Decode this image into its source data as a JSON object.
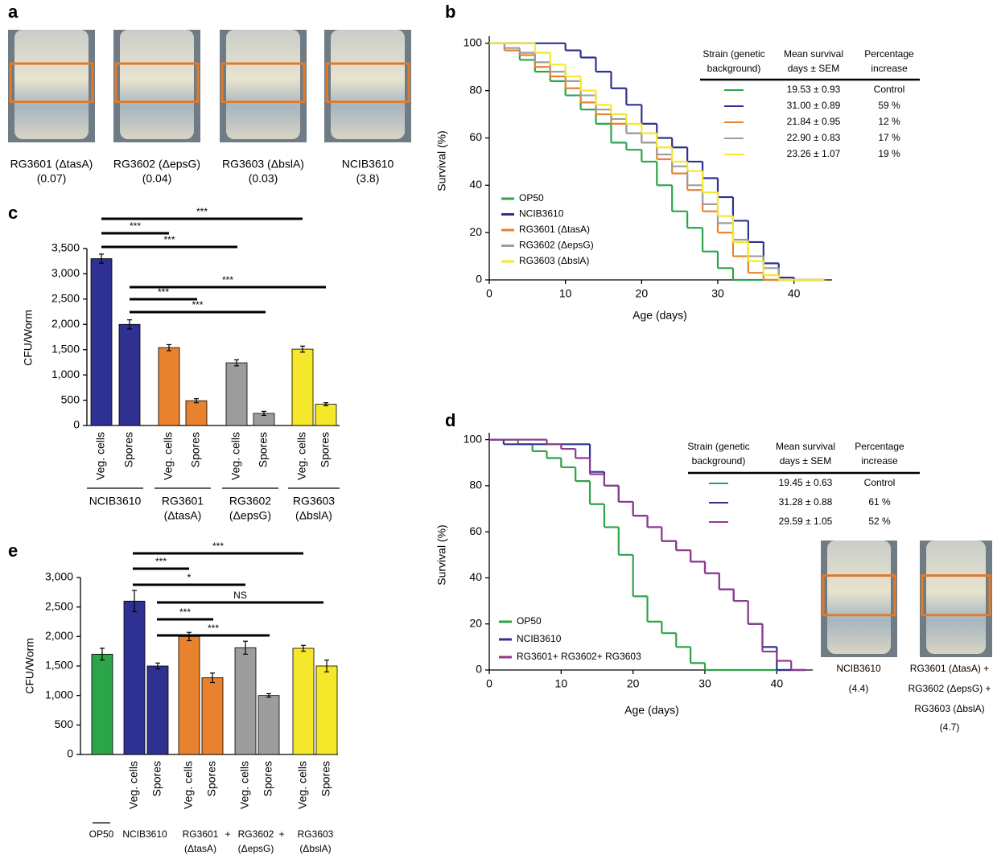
{
  "panel_a": {
    "label": "a",
    "photos": [
      {
        "name": "RG3601 (ΔtasA)",
        "value": "(0.07)"
      },
      {
        "name": "RG3602 (ΔepsG)",
        "value": "(0.04)"
      },
      {
        "name": "RG3603 (ΔbslA)",
        "value": "(0.03)"
      },
      {
        "name": "NCIB3610",
        "value": "(3.8)"
      }
    ]
  },
  "chart_data": [
    {
      "type": "step",
      "label": "b",
      "xlabel": "Age (days)",
      "ylabel": "Survival (%)",
      "x": [
        0,
        2,
        4,
        6,
        8,
        10,
        12,
        14,
        16,
        18,
        20,
        22,
        24,
        26,
        28,
        30,
        32,
        34,
        36,
        38,
        40,
        42,
        44
      ],
      "xlim": [
        0,
        45
      ],
      "xticks": [
        0,
        10,
        20,
        30,
        40
      ],
      "ylim": [
        0,
        103
      ],
      "yticks": [
        0,
        20,
        40,
        60,
        80,
        100
      ],
      "series": [
        {
          "name": "OP50",
          "color": "#2ca44a",
          "values": [
            100,
            97,
            93,
            88,
            84,
            78,
            72,
            66,
            58,
            55,
            50,
            40,
            29,
            22,
            12,
            5,
            0,
            0,
            0,
            0,
            0,
            0,
            0
          ]
        },
        {
          "name": "NCIB3610",
          "color": "#2e3192",
          "values": [
            100,
            100,
            100,
            100,
            100,
            97,
            94,
            88,
            81,
            74,
            66,
            60,
            56,
            50,
            43,
            35,
            25,
            16,
            7,
            1,
            0,
            0,
            0
          ]
        },
        {
          "name": "RG3601 (ΔtasA)",
          "color": "#e9822e",
          "values": [
            100,
            97,
            95,
            90,
            86,
            81,
            75,
            70,
            66,
            62,
            58,
            51,
            45,
            38,
            29,
            20,
            10,
            3,
            0,
            0,
            0,
            0,
            0
          ]
        },
        {
          "name": "RG3602 (ΔepsG)",
          "color": "#9d9d9d",
          "values": [
            100,
            98,
            96,
            92,
            88,
            84,
            78,
            72,
            68,
            62,
            58,
            53,
            48,
            40,
            32,
            24,
            17,
            10,
            5,
            0,
            0,
            0,
            0
          ]
        },
        {
          "name": "RG3603 (ΔbslA)",
          "color": "#f5e82a",
          "values": [
            100,
            100,
            100,
            96,
            91,
            86,
            80,
            74,
            70,
            66,
            62,
            56,
            50,
            46,
            37,
            27,
            16,
            8,
            2,
            0,
            0,
            0,
            0
          ]
        }
      ],
      "table": {
        "header": [
          [
            "Strain (genetic",
            "background)"
          ],
          [
            "Mean survival",
            "days ± SEM"
          ],
          [
            "Percentage",
            "increase"
          ]
        ],
        "rows": [
          [
            "19.53 ± 0.93",
            "Control"
          ],
          [
            "31.00 ± 0.89",
            "59 %"
          ],
          [
            "21.84 ± 0.95",
            "12 %"
          ],
          [
            "22.90 ± 0.83",
            "17 %"
          ],
          [
            "23.26 ± 1.07",
            "19 %"
          ]
        ]
      }
    },
    {
      "type": "bar",
      "label": "c",
      "ylabel": "CFU/Worm",
      "categories": [
        "Veg. cells",
        "Spores",
        "Veg. cells",
        "Spores",
        "Veg. cells",
        "Spores",
        "Veg. cells",
        "Spores"
      ],
      "values": [
        3300,
        2000,
        1540,
        490,
        1240,
        240,
        1510,
        420
      ],
      "errors": [
        90,
        90,
        60,
        40,
        60,
        40,
        60,
        30
      ],
      "colors": [
        "#2e3192",
        "#2e3192",
        "#e9822e",
        "#e9822e",
        "#9d9d9d",
        "#9d9d9d",
        "#f5e82a",
        "#f5e82a"
      ],
      "ylim": [
        0,
        3500
      ],
      "yticks": [
        0,
        500,
        {
          "value": 1000,
          "label": "1,000"
        },
        {
          "value": 1500,
          "label": "1,500"
        },
        {
          "value": 2000,
          "label": "2,000"
        },
        {
          "value": 2500,
          "label": "2,500"
        },
        {
          "value": 3000,
          "label": "3,000"
        },
        {
          "value": 3500,
          "label": "3,500"
        }
      ],
      "groups": [
        [
          "NCIB3610"
        ],
        [
          "RG3601",
          "(ΔtasA)"
        ],
        [
          "RG3602",
          "(ΔepsG)"
        ],
        [
          "RG3603",
          "(ΔbslA)"
        ]
      ],
      "significance": [
        "***",
        "***",
        "***",
        "***",
        "***",
        "***"
      ]
    },
    {
      "type": "step",
      "label": "d",
      "xlabel": "Age (days)",
      "ylabel": "Survival (%)",
      "x": [
        0,
        2,
        4,
        6,
        8,
        10,
        12,
        14,
        16,
        18,
        20,
        22,
        24,
        26,
        28,
        30,
        32,
        34,
        36,
        38,
        40,
        42,
        44
      ],
      "xlim": [
        0,
        45
      ],
      "xticks": [
        0,
        10,
        20,
        30,
        40
      ],
      "ylim": [
        0,
        103
      ],
      "yticks": [
        0,
        20,
        40,
        60,
        80,
        100
      ],
      "series": [
        {
          "name": "OP50",
          "color": "#2ca44a",
          "values": [
            100,
            100,
            98,
            95,
            92,
            88,
            82,
            72,
            62,
            50,
            32,
            21,
            16,
            10,
            3,
            0,
            0,
            0,
            0,
            0,
            0,
            0,
            0
          ]
        },
        {
          "name": "NCIB3610",
          "color": "#2e3192",
          "values": [
            100,
            98,
            98,
            98,
            98,
            98,
            98,
            86,
            80,
            73,
            67,
            62,
            56,
            52,
            47,
            42,
            35,
            30,
            20,
            10,
            0,
            0,
            0
          ]
        },
        {
          "name": "RG3601+ RG3602+ RG3603",
          "color": "#8e3b8e",
          "values": [
            100,
            100,
            100,
            100,
            98,
            96,
            92,
            85,
            80,
            73,
            67,
            62,
            56,
            52,
            47,
            42,
            35,
            30,
            20,
            8,
            4,
            0,
            0
          ]
        }
      ],
      "table": {
        "header": [
          [
            "Strain (genetic",
            "background)"
          ],
          [
            "Mean survival",
            "days ± SEM"
          ],
          [
            "Percentage",
            "increase"
          ]
        ],
        "rows": [
          [
            "19.45 ± 0.63",
            "Control"
          ],
          [
            "31.28 ± 0.88",
            "61 %"
          ],
          [
            "29.59 ± 1.05",
            "52 %"
          ]
        ]
      },
      "photos": [
        {
          "name": [
            "NCIB3610"
          ],
          "value": "(4.4)"
        },
        {
          "name": [
            "RG3601 (ΔtasA) +",
            "RG3602 (ΔepsG) +",
            "RG3603 (ΔbslA)"
          ],
          "value": "(4.7)"
        }
      ]
    },
    {
      "type": "bar",
      "label": "e",
      "ylabel": "CFU/Worm",
      "categories": [
        null,
        "Veg. cells",
        "Spores",
        "Veg. cells",
        "Spores",
        "Veg. cells",
        "Spores",
        "Veg. cells",
        "Spores"
      ],
      "values": [
        1700,
        2600,
        1500,
        2000,
        1300,
        1810,
        1000,
        1800,
        1500
      ],
      "errors": [
        100,
        180,
        50,
        70,
        80,
        110,
        30,
        50,
        100
      ],
      "colors": [
        "#2ca44a",
        "#2e3192",
        "#2e3192",
        "#e9822e",
        "#e9822e",
        "#9d9d9d",
        "#9d9d9d",
        "#f5e82a",
        "#f5e82a"
      ],
      "ylim": [
        0,
        3000
      ],
      "yticks": [
        0,
        500,
        {
          "value": 1000,
          "label": "1,000"
        },
        {
          "value": 1500,
          "label": "1,500"
        },
        {
          "value": 2000,
          "label": "2,000"
        },
        {
          "value": 2500,
          "label": "2,500"
        },
        {
          "value": 3000,
          "label": "3,000"
        }
      ],
      "groups": [
        [
          "OP50"
        ],
        [
          "NCIB3610"
        ],
        [
          "RG3601",
          "(ΔtasA)"
        ],
        [
          "+"
        ],
        [
          "RG3602",
          "(ΔepsG)"
        ],
        [
          "+"
        ],
        [
          "RG3603",
          "(ΔbslA)"
        ]
      ],
      "significance": [
        "***",
        "***",
        "*",
        "NS",
        "***",
        "***"
      ]
    }
  ]
}
